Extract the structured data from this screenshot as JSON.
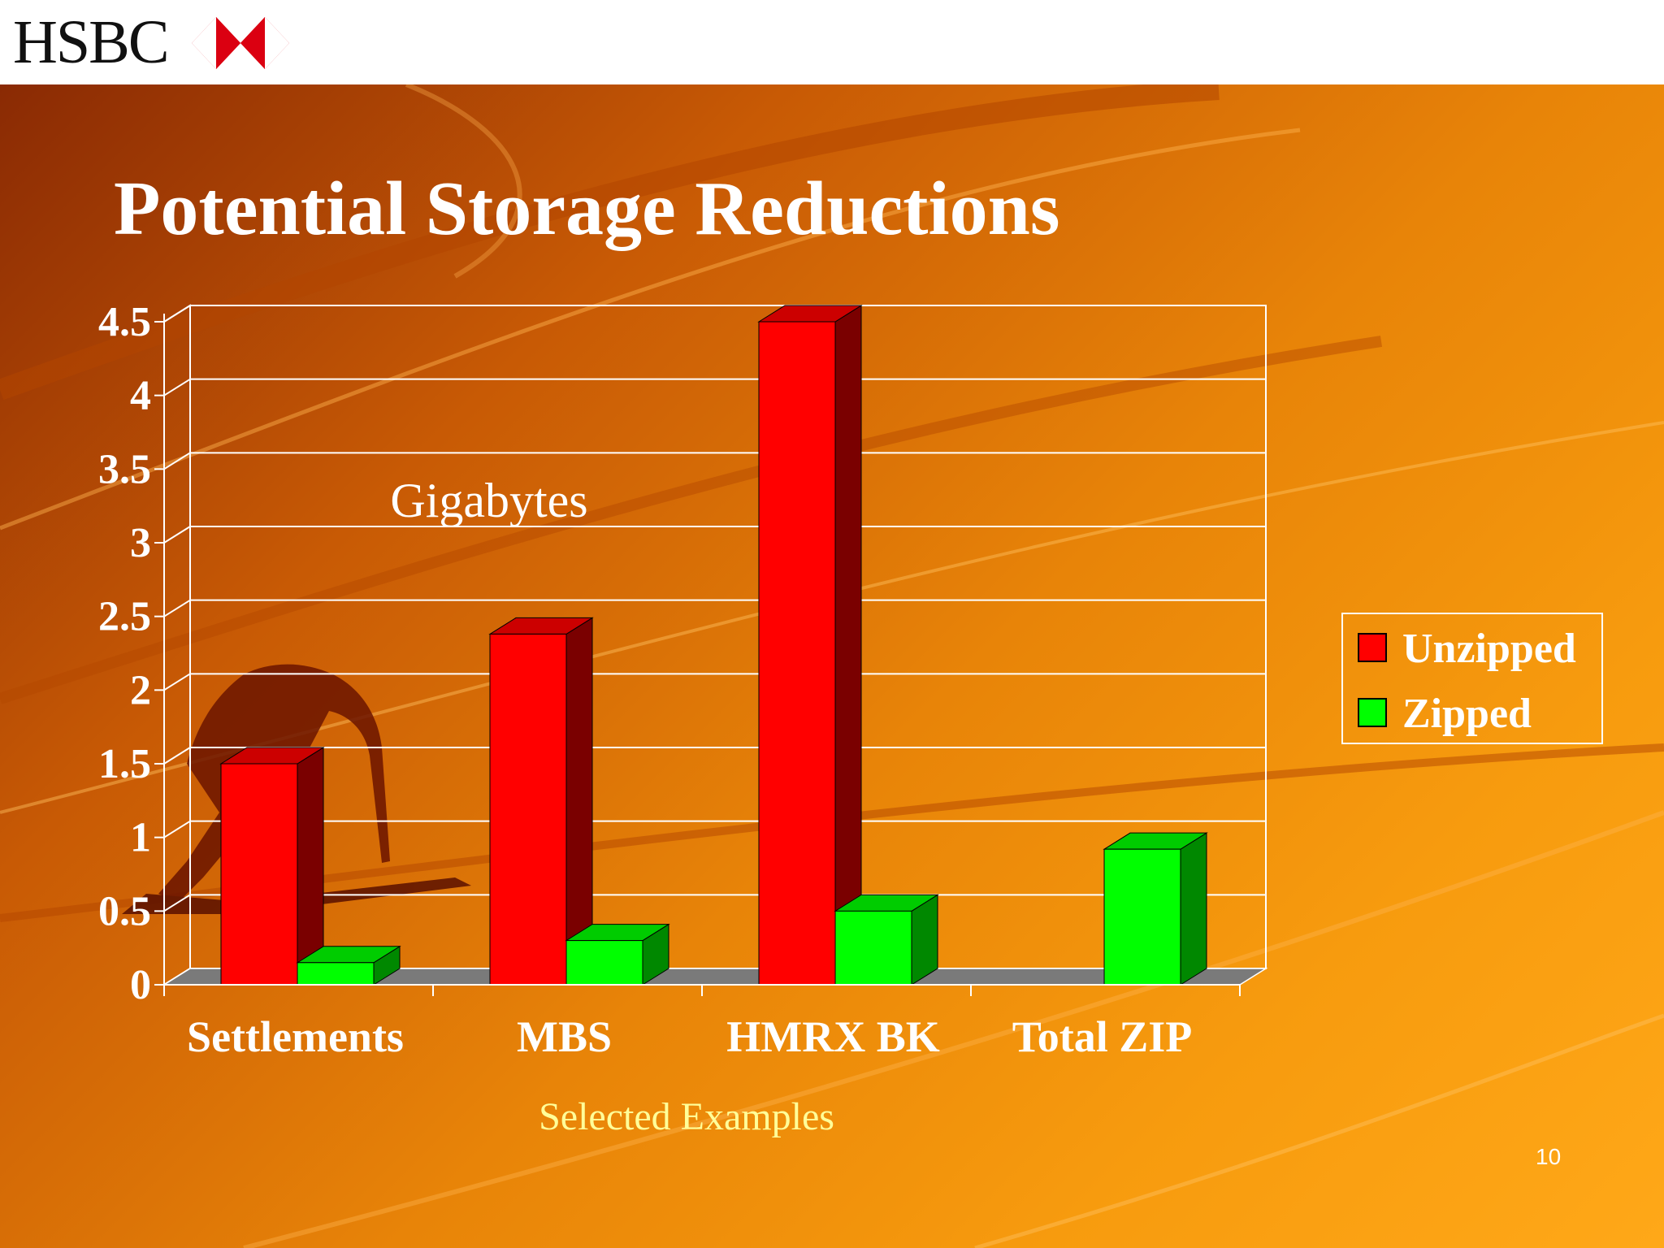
{
  "header": {
    "logo_text": "HSBC"
  },
  "slide": {
    "title": "Potential Storage Reductions",
    "page_number": "10"
  },
  "colors": {
    "unzipped": "#ff0000",
    "unzipped_side": "#7a0000",
    "unzipped_top": "#cc0000",
    "zipped": "#00ff00",
    "zipped_side": "#008800",
    "zipped_top": "#00cc00",
    "axis_label": "#ffff99"
  },
  "icons": {
    "logo": "hsbc-hexagon-icon"
  },
  "chart_data": {
    "type": "bar",
    "title": "Potential Storage Reductions",
    "ylabel": "Gigabytes",
    "xlabel": "Selected Examples",
    "categories": [
      "Settlements",
      "MBS",
      "HMRX BK",
      "Total ZIP"
    ],
    "series": [
      {
        "name": "Unzipped",
        "values": [
          1.5,
          2.38,
          4.5,
          null
        ]
      },
      {
        "name": "Zipped",
        "values": [
          0.15,
          0.3,
          0.5,
          0.92
        ]
      }
    ],
    "ylim": [
      0,
      4.5
    ],
    "yticks": [
      "0",
      "0.5",
      "1",
      "1.5",
      "2",
      "2.5",
      "3",
      "3.5",
      "4",
      "4.5"
    ],
    "grid": true,
    "style": "3d",
    "legend": "right"
  }
}
